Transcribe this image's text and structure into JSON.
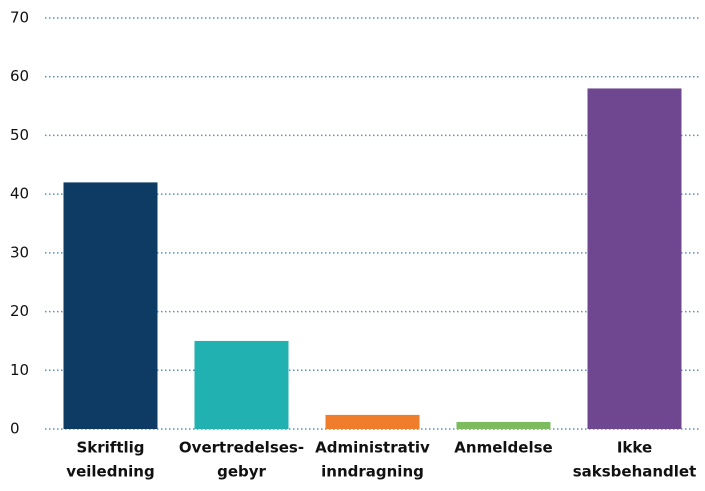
{
  "chart_data": {
    "type": "bar",
    "categories": [
      [
        "Skriftlig",
        "veiledning"
      ],
      [
        "Overtredelses-",
        "gebyr"
      ],
      [
        "Administrativ",
        "inndragning"
      ],
      [
        "Anmeldelse"
      ],
      [
        "Ikke",
        "saksbehandlet"
      ]
    ],
    "values": [
      42,
      15,
      2.4,
      1.2,
      58
    ],
    "colors": [
      "#0d3b63",
      "#22b1b1",
      "#ef7d2c",
      "#7dbb5f",
      "#6f4690"
    ],
    "ylim": [
      0,
      70
    ],
    "yticks": [
      0,
      10,
      20,
      30,
      40,
      50,
      60,
      70
    ],
    "grid": true
  }
}
